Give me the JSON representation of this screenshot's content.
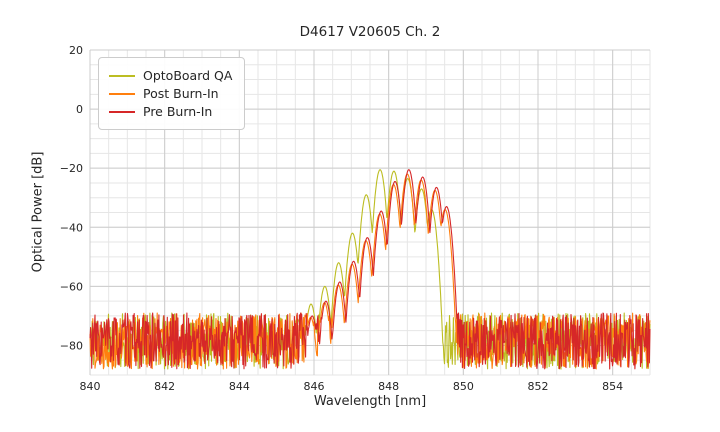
{
  "chart_data": {
    "type": "line",
    "title": "D4617 V20605 Ch. 2",
    "xlabel": "Wavelength [nm]",
    "ylabel": "Optical Power [dB]",
    "xlim": [
      840,
      855
    ],
    "ylim": [
      -90,
      20
    ],
    "xticks": [
      840,
      842,
      844,
      846,
      848,
      850,
      852,
      854
    ],
    "yticks": [
      20,
      0,
      -20,
      -40,
      -60,
      -80
    ],
    "minor_grid_x_step": 0.5,
    "minor_grid_y_step": 5,
    "grid": true,
    "legend_position": "upper left",
    "background": "#ffffff",
    "series": [
      {
        "name": "OptoBoard QA",
        "color": "#bcbd22",
        "seed": 11,
        "noise_floor_db": -88,
        "noise_range_db": 19,
        "mode_falloff_db_per_nm2": 500,
        "modes": [
          {
            "center": 845.55,
            "peak": -71
          },
          {
            "center": 845.92,
            "peak": -66
          },
          {
            "center": 846.29,
            "peak": -60
          },
          {
            "center": 846.66,
            "peak": -52
          },
          {
            "center": 847.03,
            "peak": -42
          },
          {
            "center": 847.4,
            "peak": -29
          },
          {
            "center": 847.77,
            "peak": -20.5
          },
          {
            "center": 848.14,
            "peak": -21
          },
          {
            "center": 848.51,
            "peak": -23.5
          },
          {
            "center": 848.88,
            "peak": -27
          },
          {
            "center": 849.15,
            "peak": -34
          }
        ]
      },
      {
        "name": "Post Burn-In",
        "color": "#ff7f0e",
        "seed": 22,
        "noise_floor_db": -88,
        "noise_range_db": 19,
        "mode_falloff_db_per_nm2": 500,
        "modes": [
          {
            "center": 845.91,
            "peak": -70.5
          },
          {
            "center": 846.28,
            "peak": -65.5
          },
          {
            "center": 846.65,
            "peak": -59.5
          },
          {
            "center": 847.02,
            "peak": -52.5
          },
          {
            "center": 847.39,
            "peak": -44.5
          },
          {
            "center": 847.76,
            "peak": -35.5
          },
          {
            "center": 848.13,
            "peak": -25.5
          },
          {
            "center": 848.5,
            "peak": -22
          },
          {
            "center": 848.87,
            "peak": -24
          },
          {
            "center": 849.24,
            "peak": -27.5
          },
          {
            "center": 849.51,
            "peak": -34
          }
        ]
      },
      {
        "name": "Pre Burn-In",
        "color": "#d62728",
        "seed": 33,
        "noise_floor_db": -88,
        "noise_range_db": 19,
        "mode_falloff_db_per_nm2": 500,
        "modes": [
          {
            "center": 845.95,
            "peak": -70
          },
          {
            "center": 846.32,
            "peak": -65
          },
          {
            "center": 846.69,
            "peak": -58.5
          },
          {
            "center": 847.06,
            "peak": -51.5
          },
          {
            "center": 847.43,
            "peak": -43.5
          },
          {
            "center": 847.8,
            "peak": -34.5
          },
          {
            "center": 848.17,
            "peak": -24.5
          },
          {
            "center": 848.54,
            "peak": -20.5
          },
          {
            "center": 848.91,
            "peak": -23
          },
          {
            "center": 849.28,
            "peak": -26.5
          },
          {
            "center": 849.55,
            "peak": -33
          }
        ]
      }
    ]
  }
}
